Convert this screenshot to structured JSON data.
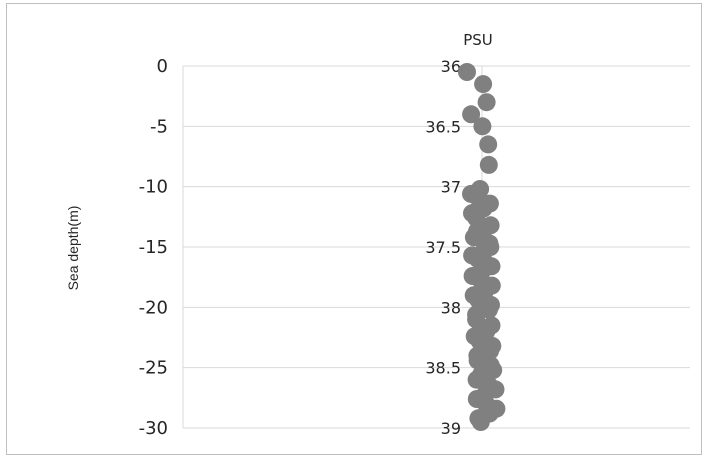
{
  "chart_data": {
    "type": "scatter",
    "title": "PSU",
    "ylabel": "Sea depth(m)",
    "xlabel": "",
    "xlim": [
      36,
      39
    ],
    "ylim": [
      -30,
      0
    ],
    "x_axis_position": "vertical-center",
    "x_ticks": [
      "36",
      "36.5",
      "37",
      "37.5",
      "38",
      "38.5",
      "39"
    ],
    "y_ticks": [
      "0",
      "-5",
      "-10",
      "-15",
      "-20",
      "-25",
      "-30"
    ],
    "grid": "horizontal",
    "point_color": "#808080",
    "series": [
      {
        "points": [
          [
            36.02,
            -0.5
          ],
          [
            36.1,
            -1.5
          ],
          [
            36.22,
            -3.0
          ],
          [
            36.64,
            -4.0
          ],
          [
            36.74,
            -5.0
          ],
          [
            36.9,
            -6.5
          ],
          [
            37.06,
            -8.2
          ],
          [
            37.05,
            -10.2
          ],
          [
            37.12,
            -10.2
          ],
          [
            37.14,
            -10.6
          ],
          [
            37.1,
            -11.0
          ],
          [
            37.12,
            -11.4
          ],
          [
            37.13,
            -11.8
          ],
          [
            37.18,
            -12.2
          ],
          [
            37.2,
            -12.6
          ],
          [
            37.25,
            -13.2
          ],
          [
            37.22,
            -13.7
          ],
          [
            37.3,
            -14.2
          ],
          [
            37.35,
            -14.7
          ],
          [
            37.4,
            -15.2
          ],
          [
            37.42,
            -15.7
          ],
          [
            37.46,
            -16.2
          ],
          [
            37.5,
            -16.6
          ],
          [
            37.52,
            -17.0
          ],
          [
            37.55,
            -17.4
          ],
          [
            37.58,
            -17.8
          ],
          [
            37.6,
            -18.2
          ],
          [
            37.63,
            -18.6
          ],
          [
            37.66,
            -19.0
          ],
          [
            37.7,
            -19.4
          ],
          [
            37.72,
            -19.8
          ],
          [
            37.75,
            -20.2
          ],
          [
            37.8,
            -20.6
          ],
          [
            37.83,
            -21.0
          ],
          [
            37.86,
            -21.5
          ],
          [
            37.9,
            -22.0
          ],
          [
            37.93,
            -22.4
          ],
          [
            38.0,
            -22.8
          ],
          [
            38.05,
            -23.2
          ],
          [
            38.1,
            -23.6
          ],
          [
            38.15,
            -24.0
          ],
          [
            38.2,
            -24.4
          ],
          [
            38.25,
            -24.8
          ],
          [
            38.3,
            -25.2
          ],
          [
            38.35,
            -25.6
          ],
          [
            38.42,
            -26.0
          ],
          [
            38.48,
            -26.4
          ],
          [
            38.55,
            -26.8
          ],
          [
            38.6,
            -27.2
          ],
          [
            38.66,
            -27.6
          ],
          [
            38.72,
            -28.0
          ],
          [
            38.78,
            -28.4
          ],
          [
            38.85,
            -28.8
          ],
          [
            38.92,
            -29.2
          ],
          [
            38.98,
            -29.5
          ],
          [
            37.2,
            -12.0
          ],
          [
            37.35,
            -13.5
          ],
          [
            37.5,
            -15.0
          ],
          [
            37.6,
            -16.0
          ],
          [
            37.7,
            -17.0
          ]
        ]
      }
    ]
  }
}
